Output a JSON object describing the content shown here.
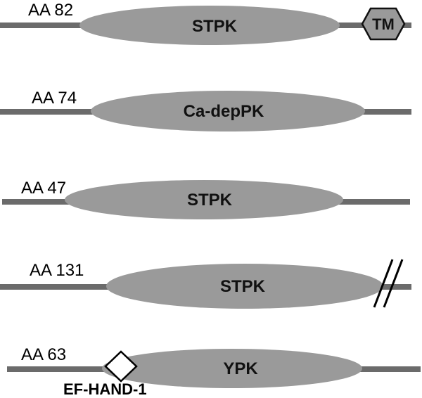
{
  "proteins": [
    {
      "position_label": "AA 82",
      "domain_label": "STPK",
      "extra_label": "TM"
    },
    {
      "position_label": "AA 74",
      "domain_label": "Ca-depPK"
    },
    {
      "position_label": "AA 47",
      "domain_label": "STPK"
    },
    {
      "position_label": "AA 131",
      "domain_label": "STPK"
    },
    {
      "position_label": "AA 63",
      "domain_label": "YPK",
      "extra_label": "EF-HAND-1"
    }
  ],
  "colors": {
    "backbone": "#6b6b6b",
    "domain": "#9a9a9a",
    "text": "#000000"
  },
  "icons": {
    "tm": "hexagon-tm-icon",
    "break": "double-slash-break-icon",
    "ef_hand": "diamond-ef-hand-icon"
  }
}
